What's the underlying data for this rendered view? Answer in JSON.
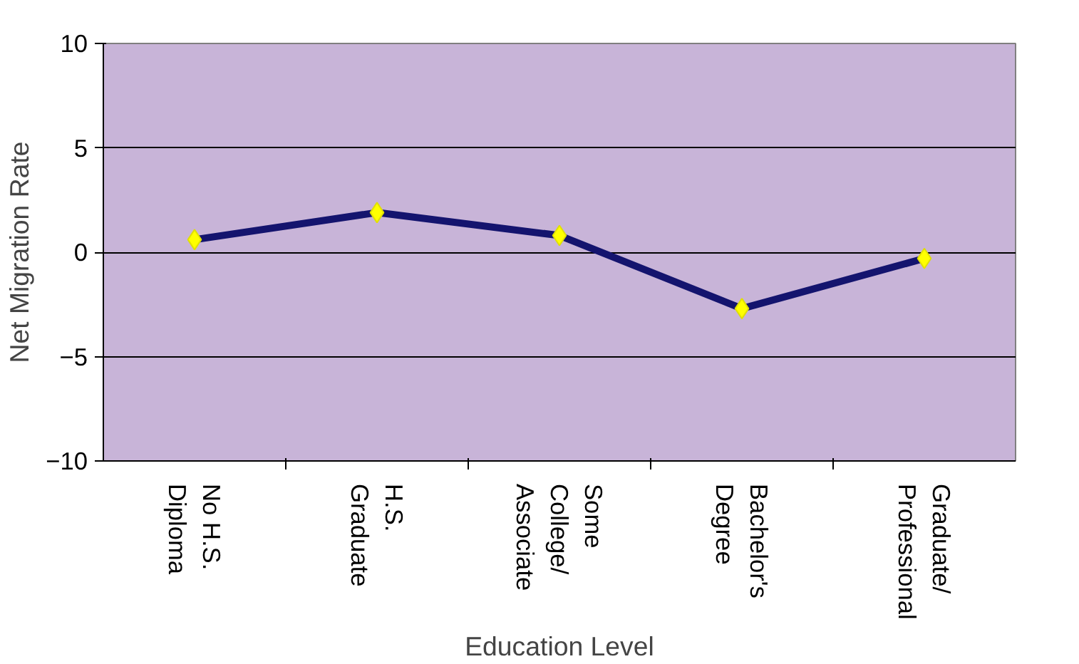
{
  "chart_data": {
    "type": "line",
    "categories": [
      "No H.S.\nDiploma",
      "H.S.\nGraduate",
      "Some\nCollege/\nAssociate",
      "Bachelor's\nDegree",
      "Graduate/\nProfessional"
    ],
    "series": [
      {
        "color": "#14146e",
        "values": [
          0.6,
          1.9,
          0.8,
          -2.7,
          -0.3
        ]
      }
    ],
    "xlabel": "Education Level",
    "ylabel": "Net Migration Rate",
    "ylim": [
      -10,
      10
    ],
    "yticks": [
      -10,
      -5,
      0,
      5,
      10
    ],
    "grid": "y",
    "marker": "diamond",
    "line_style": "solid"
  }
}
